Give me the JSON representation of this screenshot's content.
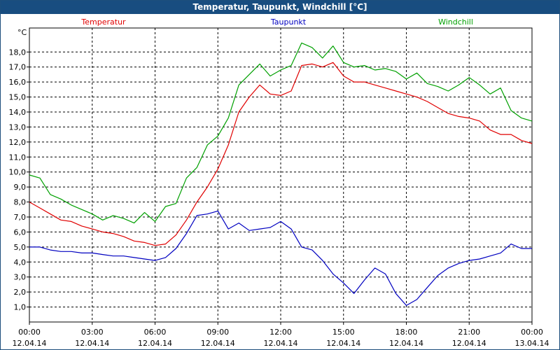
{
  "window": {
    "title": "Temperatur, Taupunkt, Windchill [°C]"
  },
  "chart_data": {
    "type": "line",
    "ylabel": "°C",
    "ylim": [
      0.0,
      19.6
    ],
    "yticks": [
      "1,0",
      "2,0",
      "3,0",
      "4,0",
      "5,0",
      "6,0",
      "7,0",
      "8,0",
      "9,0",
      "10,0",
      "11,0",
      "12,0",
      "13,0",
      "14,0",
      "15,0",
      "16,0",
      "17,0",
      "18,0"
    ],
    "xlim": [
      0,
      24
    ],
    "xticks": [
      {
        "time": "00:00",
        "date": "12.04.14"
      },
      {
        "time": "03:00",
        "date": "12.04.14"
      },
      {
        "time": "06:00",
        "date": "12.04.14"
      },
      {
        "time": "09:00",
        "date": "12.04.14"
      },
      {
        "time": "12:00",
        "date": "12.04.14"
      },
      {
        "time": "15:00",
        "date": "12.04.14"
      },
      {
        "time": "18:00",
        "date": "12.04.14"
      },
      {
        "time": "21:00",
        "date": "12.04.14"
      },
      {
        "time": "00:00",
        "date": "13.04.14"
      }
    ],
    "grid": true,
    "legend": "top",
    "series": [
      {
        "name": "Temperatur",
        "color": "#e00000",
        "x": [
          0,
          0.5,
          1,
          1.5,
          2,
          2.5,
          3,
          3.5,
          4,
          4.5,
          5,
          5.5,
          6,
          6.5,
          7,
          7.5,
          8,
          8.5,
          9,
          9.5,
          10,
          10.5,
          11,
          11.5,
          12,
          12.5,
          13,
          13.5,
          14,
          14.5,
          15,
          15.5,
          16,
          16.5,
          17,
          17.5,
          18,
          18.5,
          19,
          19.5,
          20,
          20.5,
          21,
          21.5,
          22,
          22.5,
          23,
          23.5,
          24
        ],
        "values": [
          8.0,
          7.6,
          7.2,
          6.8,
          6.7,
          6.4,
          6.2,
          6.0,
          5.9,
          5.7,
          5.4,
          5.3,
          5.1,
          5.2,
          5.8,
          6.8,
          8.0,
          9.0,
          10.2,
          11.8,
          14.0,
          15.0,
          15.8,
          15.2,
          15.1,
          15.4,
          17.1,
          17.2,
          17.0,
          17.3,
          16.4,
          16.0,
          16.0,
          15.8,
          15.6,
          15.4,
          15.2,
          15.0,
          14.7,
          14.3,
          13.9,
          13.7,
          13.6,
          13.4,
          12.8,
          12.5,
          12.5,
          12.1,
          11.9
        ]
      },
      {
        "name": "Taupunkt",
        "color": "#0000c0",
        "x": [
          0,
          0.5,
          1,
          1.5,
          2,
          2.5,
          3,
          3.5,
          4,
          4.5,
          5,
          5.5,
          6,
          6.5,
          7,
          7.5,
          8,
          8.5,
          9,
          9.5,
          10,
          10.5,
          11,
          11.5,
          12,
          12.5,
          13,
          13.5,
          14,
          14.5,
          15,
          15.5,
          16,
          16.5,
          17,
          17.5,
          18,
          18.5,
          19,
          19.5,
          20,
          20.5,
          21,
          21.5,
          22,
          22.5,
          23,
          23.5,
          24
        ],
        "values": [
          5.0,
          5.0,
          4.8,
          4.7,
          4.7,
          4.6,
          4.6,
          4.5,
          4.4,
          4.4,
          4.3,
          4.2,
          4.1,
          4.3,
          4.9,
          5.9,
          7.1,
          7.2,
          7.4,
          6.2,
          6.6,
          6.1,
          6.2,
          6.3,
          6.7,
          6.2,
          5.0,
          4.8,
          4.1,
          3.2,
          2.6,
          1.9,
          2.8,
          3.6,
          3.2,
          1.9,
          1.1,
          1.5,
          2.3,
          3.1,
          3.6,
          3.9,
          4.1,
          4.2,
          4.4,
          4.6,
          5.2,
          4.9,
          4.9
        ]
      },
      {
        "name": "Windchill",
        "color": "#00a000",
        "x": [
          0,
          0.5,
          1,
          1.5,
          2,
          2.5,
          3,
          3.5,
          4,
          4.5,
          5,
          5.5,
          6,
          6.5,
          7,
          7.5,
          8,
          8.5,
          9,
          9.5,
          10,
          10.5,
          11,
          11.5,
          12,
          12.5,
          13,
          13.5,
          14,
          14.5,
          15,
          15.5,
          16,
          16.5,
          17,
          17.5,
          18,
          18.5,
          19,
          19.5,
          20,
          20.5,
          21,
          21.5,
          22,
          22.5,
          23,
          23.5,
          24
        ],
        "values": [
          9.8,
          9.6,
          8.5,
          8.2,
          7.8,
          7.5,
          7.2,
          6.8,
          7.1,
          6.9,
          6.6,
          7.3,
          6.7,
          7.7,
          7.9,
          9.6,
          10.3,
          11.8,
          12.4,
          13.6,
          15.8,
          16.5,
          17.2,
          16.4,
          16.8,
          17.1,
          18.6,
          18.3,
          17.6,
          18.4,
          17.3,
          17.0,
          17.1,
          16.8,
          16.9,
          16.7,
          16.2,
          16.6,
          15.9,
          15.7,
          15.4,
          15.8,
          16.3,
          15.8,
          15.2,
          15.6,
          14.1,
          13.6,
          13.4
        ]
      }
    ]
  }
}
